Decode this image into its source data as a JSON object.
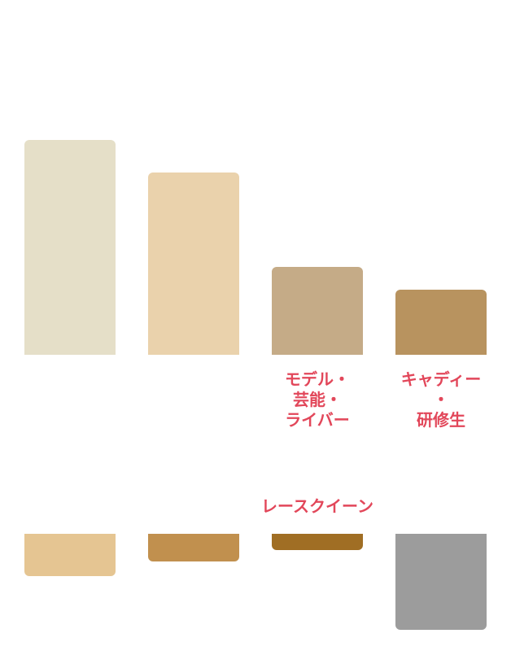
{
  "chart_data": [
    {
      "type": "bar",
      "categories": [
        null,
        null,
        "モデル・\n芸能・\nライバー",
        "キャディー\n・\n研修生"
      ],
      "values": [
        264,
        224,
        108,
        80
      ],
      "colors": [
        "#e5dfc8",
        "#ead2ac",
        "#c5ab87",
        "#b8935f"
      ]
    },
    {
      "type": "bar",
      "categories": [
        null,
        null,
        "レースクイーン",
        null
      ],
      "values": [
        52,
        34,
        20,
        118
      ],
      "colors": [
        "#e5c592",
        "#c1904e",
        "#a06e24",
        "#9c9c9c"
      ]
    }
  ]
}
